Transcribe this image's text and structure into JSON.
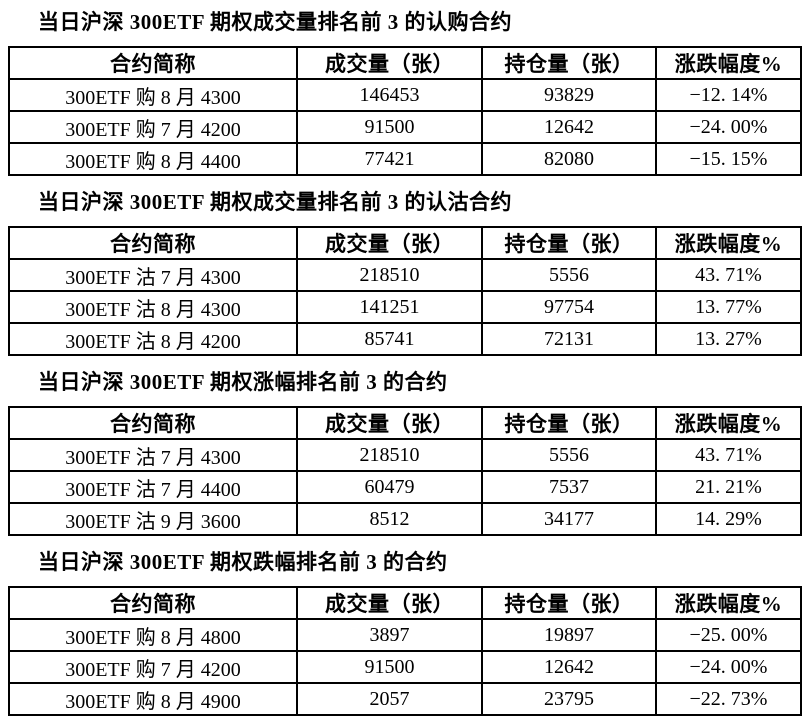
{
  "page": {
    "background": "#ffffff",
    "text_color": "#000000",
    "border_color": "#000000"
  },
  "tables": [
    {
      "title": "当日沪深 300ETF 期权成交量排名前 3 的认购合约",
      "headers": [
        "合约简称",
        "成交量（张）",
        "持仓量（张）",
        "涨跌幅度%"
      ],
      "rows": [
        [
          "300ETF 购 8 月 4300",
          "146453",
          "93829",
          "−12. 14%"
        ],
        [
          "300ETF 购 7 月 4200",
          "91500",
          "12642",
          "−24. 00%"
        ],
        [
          "300ETF 购 8 月 4400",
          "77421",
          "82080",
          "−15. 15%"
        ]
      ]
    },
    {
      "title": "当日沪深 300ETF 期权成交量排名前 3 的认沽合约",
      "headers": [
        "合约简称",
        "成交量（张）",
        "持仓量（张）",
        "涨跌幅度%"
      ],
      "rows": [
        [
          "300ETF 沽 7 月 4300",
          "218510",
          "5556",
          "43. 71%"
        ],
        [
          "300ETF 沽 8 月 4300",
          "141251",
          "97754",
          "13. 77%"
        ],
        [
          "300ETF 沽 8 月 4200",
          "85741",
          "72131",
          "13. 27%"
        ]
      ]
    },
    {
      "title": "当日沪深 300ETF 期权涨幅排名前 3 的合约",
      "headers": [
        "合约简称",
        "成交量（张）",
        "持仓量（张）",
        "涨跌幅度%"
      ],
      "rows": [
        [
          "300ETF 沽 7 月 4300",
          "218510",
          "5556",
          "43. 71%"
        ],
        [
          "300ETF 沽 7 月 4400",
          "60479",
          "7537",
          "21. 21%"
        ],
        [
          "300ETF 沽 9 月 3600",
          "8512",
          "34177",
          "14. 29%"
        ]
      ]
    },
    {
      "title": "当日沪深 300ETF 期权跌幅排名前 3 的合约",
      "headers": [
        "合约简称",
        "成交量（张）",
        "持仓量（张）",
        "涨跌幅度%"
      ],
      "rows": [
        [
          "300ETF 购 8 月 4800",
          "3897",
          "19897",
          "−25. 00%"
        ],
        [
          "300ETF 购 7 月 4200",
          "91500",
          "12642",
          "−24. 00%"
        ],
        [
          "300ETF 购 8 月 4900",
          "2057",
          "23795",
          "−22. 73%"
        ]
      ]
    }
  ]
}
